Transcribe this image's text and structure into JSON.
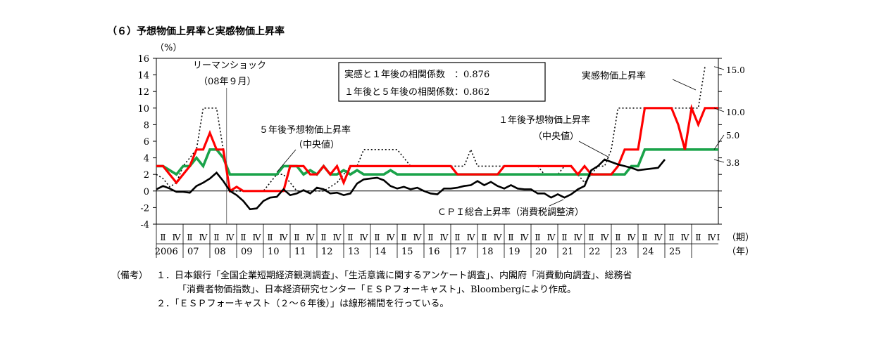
{
  "title": "（６）予想物価上昇率と実感物価上昇率",
  "notes": {
    "label": "（備考）",
    "line1": "１．日本銀行「全国企業短期経済観測調査」、「生活意識に関するアンケート調査」、内閣府「消費動向調査」、総務省",
    "line2": "「消費者物価指数」、日本経済研究センター「ＥＳＰフォーキャスト」、Bloombergにより作成。",
    "line3": "２．「ＥＳＰフォーキャスト（２～６年後）」は線形補間を行っている。"
  },
  "chart_data": {
    "type": "line",
    "ylabel": "（%）",
    "ylim": [
      -4,
      16
    ],
    "yticks": [
      "-4",
      "-2",
      "0",
      "2",
      "4",
      "6",
      "8",
      "10",
      "12",
      "14",
      "16"
    ],
    "period_unit": "（期）",
    "year_unit": "（年）",
    "years": [
      "2006",
      "07",
      "08",
      "09",
      "10",
      "11",
      "12",
      "13",
      "14",
      "15",
      "16",
      "17",
      "18",
      "19",
      "20",
      "21",
      "22",
      "23",
      "24",
      "25"
    ],
    "quarter_ticks": [
      "Ⅱ",
      "Ⅳ"
    ],
    "last_quarter_tick": "Ⅰ",
    "annotations": {
      "lehman_line1": "リーマンショック",
      "lehman_line2": "（08年９月）",
      "corr_line1": "実感と１年後の相関係数　：0.876",
      "corr_line2": "１年後と５年後の相関係数：0.862",
      "label_5y_line1": "５年後予想物価上昇率",
      "label_5y_line2": "（中央値）",
      "label_1y_line1": "１年後予想物価上昇率",
      "label_1y_line2": "（中央値）",
      "label_perceived": "実感物価上昇率",
      "label_cpi": "ＣＰＩ総合上昇率（消費税調整済）"
    },
    "end_labels": [
      "15.0",
      "10.0",
      "5.0",
      "3.8"
    ],
    "series": [
      {
        "name": "実感物価上昇率",
        "color": "#000000",
        "style": "dotted",
        "values": [
          2,
          1.5,
          0.5,
          1,
          3,
          4,
          5,
          10,
          10,
          10,
          5,
          0,
          0,
          0,
          0,
          0,
          0,
          1,
          2,
          2,
          1,
          0,
          0,
          0,
          0,
          0,
          0.5,
          1,
          2,
          3,
          3,
          5,
          5,
          5,
          5,
          5,
          5,
          4,
          3,
          3,
          3,
          3,
          3,
          3,
          3,
          3,
          3,
          5,
          3,
          3,
          3,
          3,
          3,
          3,
          3,
          3,
          3,
          3,
          2,
          2,
          2,
          3,
          3,
          2,
          1,
          2,
          3,
          3,
          5,
          10,
          10,
          10,
          10,
          10,
          10,
          10,
          10,
          10,
          10,
          10,
          10,
          10,
          15
        ]
      },
      {
        "name": "１年後予想物価上昇率（中央値）",
        "color": "#ff0000",
        "style": "solid",
        "values": [
          3,
          3,
          2,
          1,
          2,
          3,
          5,
          5,
          7,
          5,
          5,
          0,
          0.5,
          0,
          0,
          0,
          0,
          0,
          0,
          0,
          3,
          3,
          3,
          2,
          2,
          3,
          2,
          3,
          1,
          3,
          3,
          3,
          3,
          3,
          3,
          3,
          3,
          3,
          3,
          3,
          3,
          3,
          3,
          3,
          3,
          2,
          2,
          2,
          2,
          2,
          2,
          2,
          3,
          3,
          3,
          3,
          3,
          3,
          3,
          3,
          3,
          3,
          3,
          2,
          3,
          2,
          2,
          2,
          2,
          3,
          5,
          5,
          5,
          10,
          10,
          10,
          10,
          10,
          8,
          5,
          10,
          8,
          10,
          10,
          10
        ]
      },
      {
        "name": "５年後予想物価上昇率（中央値）",
        "color": "#1aa34a",
        "style": "solid",
        "values": [
          3,
          3,
          2.5,
          2,
          3,
          3,
          4,
          3,
          5,
          5,
          4,
          2,
          2,
          2,
          2,
          2,
          2,
          2,
          2,
          3,
          3,
          3,
          2,
          2.5,
          2,
          3,
          2,
          2,
          2.5,
          2,
          2.5,
          2,
          2,
          2,
          2,
          2.5,
          2,
          2,
          2,
          2,
          2,
          2,
          2,
          2,
          2,
          2,
          2,
          2,
          2,
          2,
          2,
          2,
          2,
          2,
          2,
          2,
          2,
          2,
          2,
          2,
          2,
          2,
          2,
          2,
          2,
          2,
          2,
          2,
          2,
          2,
          2,
          3,
          3,
          5,
          5,
          5,
          5,
          5,
          5,
          5,
          5,
          5,
          5,
          5,
          5
        ]
      },
      {
        "name": "ＣＰＩ総合上昇率（消費税調整済）",
        "color": "#000000",
        "style": "solid",
        "values": [
          0.2,
          0.6,
          0.3,
          -0.1,
          -0.1,
          -0.2,
          0.6,
          1,
          1.5,
          2.2,
          1.2,
          0,
          -0.5,
          -1.2,
          -2.2,
          -2.1,
          -1.2,
          -0.8,
          -0.7,
          0.2,
          -0.5,
          -0.3,
          0.1,
          -0.3,
          0.4,
          0.2,
          -0.3,
          -0.2,
          -0.5,
          -0.3,
          0.9,
          1.4,
          1.5,
          1.6,
          1.3,
          0.6,
          0.3,
          0.5,
          0.2,
          0.4,
          0,
          -0.3,
          -0.4,
          0.3,
          0.3,
          0.4,
          0.6,
          0.7,
          1.2,
          0.7,
          1.1,
          0.6,
          0.3,
          0.7,
          0.3,
          0.2,
          0.2,
          -0.3,
          -0.3,
          -0.8,
          -0.4,
          -0.8,
          -0.4,
          0.2,
          0.6,
          2.5,
          3,
          3.8,
          3.5,
          3.2,
          3,
          2.8,
          2.5,
          2.6,
          2.7,
          2.8,
          3.8
        ]
      }
    ]
  }
}
